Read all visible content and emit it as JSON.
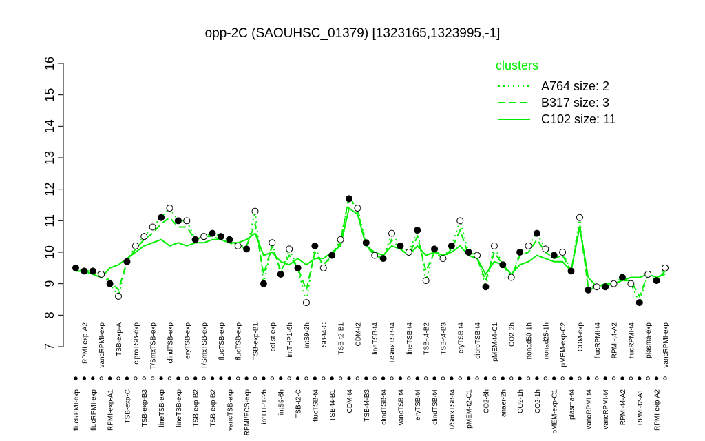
{
  "chart_data": {
    "type": "line",
    "title": "opp-2C (SAOUHSC_01379) [1323165,1323995,-1]",
    "ylim": [
      7,
      16
    ],
    "yticks": [
      7,
      8,
      9,
      10,
      11,
      12,
      13,
      14,
      15,
      16
    ],
    "categories": [
      "flucRPMI-exp",
      "RPMI-exp-A2",
      "flucRPMI-exp",
      "vancRPMI-exp",
      "RPMI-exp-A1",
      "TSB-exp-A",
      "TSB-exp-C",
      "ciproTSB-exp",
      "TSB-exp-B3",
      "T/SmxTSB-exp",
      "lineTSB-exp",
      "clindTSB-exp",
      "lineTSB-exp",
      "eryTSB-exp",
      "TSB-exp-B2",
      "T/SmxTSB-exp",
      "TSB-exp-B2",
      "flucTSB-exp",
      "vancTSB-exp",
      "flucTSB-exp",
      "RPMI/FCS-exp",
      "TSB-exp-B1",
      "intTHP1-2h",
      "colist-exp",
      "intS9-6h",
      "intTHP1-6h",
      "TSB-t2-C",
      "intS9-2h",
      "flucTSB-t4",
      "TSB-t4-C",
      "TSB-t4-B1",
      "TSB-t2-B1",
      "CDM-t4",
      "CDM-t2",
      "TSB-t4-B3",
      "lineTSB-t4",
      "clindTSB-t4",
      "T/SmxTSB-t4",
      "vancTSB-t4",
      "lineTSB-t4",
      "eryTSB-t4",
      "TSB-t4-B2",
      "clindTSB-t4",
      "TSB-t4-B3",
      "T/SmxTSB-t4",
      "eryTSB-t4",
      "pMEM-t2-C1",
      "ciproTSB-t4",
      "CO2-6h",
      "pMEM-t4-C1",
      "anaer-2h",
      "CO2-2h",
      "CO2-1h",
      "nonad50-1h",
      "CO2-1h",
      "nonad25-1h",
      "pMEM-exp-C1",
      "pMEM-exp-C2",
      "plasma-t4",
      "CDM-exp",
      "vancRPMI-t4",
      "flucRPMI-t4",
      "vancRPMI-t4",
      "RPMI-t4-A2",
      "RPMI-t4-A2",
      "flucRPMI-t4",
      "RPMI-t2-A1",
      "plasma-exp",
      "RPMI-exp-A2",
      "vancRPMI-exp"
    ],
    "values": [
      9.5,
      9.4,
      9.4,
      9.3,
      9.0,
      8.6,
      9.7,
      10.2,
      10.5,
      10.8,
      11.1,
      11.4,
      11.0,
      11.0,
      10.4,
      10.5,
      10.6,
      10.5,
      10.4,
      10.2,
      10.1,
      11.3,
      9.0,
      10.3,
      9.3,
      10.1,
      9.5,
      8.4,
      10.2,
      9.5,
      9.9,
      10.4,
      11.7,
      11.4,
      10.3,
      9.9,
      9.8,
      10.6,
      10.2,
      10.0,
      10.7,
      9.1,
      10.1,
      9.8,
      10.2,
      11.0,
      10.0,
      9.9,
      8.9,
      10.2,
      9.6,
      9.2,
      10.0,
      10.2,
      10.6,
      10.1,
      9.9,
      10.0,
      9.4,
      11.1,
      8.8,
      8.9,
      8.9,
      9.0,
      9.2,
      9.0,
      8.4,
      9.3,
      9.1,
      9.5
    ],
    "filled": [
      true,
      true,
      true,
      false,
      true,
      false,
      true,
      false,
      false,
      false,
      true,
      false,
      true,
      false,
      true,
      false,
      true,
      true,
      true,
      false,
      true,
      false,
      true,
      false,
      true,
      false,
      true,
      false,
      true,
      false,
      true,
      false,
      true,
      false,
      true,
      false,
      true,
      false,
      true,
      false,
      true,
      false,
      true,
      false,
      true,
      false,
      true,
      false,
      true,
      false,
      true,
      false,
      true,
      false,
      true,
      false,
      true,
      false,
      true,
      false,
      true,
      false,
      true,
      false,
      true,
      false,
      true,
      false,
      true,
      false
    ],
    "legend_title": "clusters",
    "series": [
      {
        "name": "A764 size: 2",
        "color": "#00ee00",
        "dash": "2,5",
        "values": [
          9.5,
          9.4,
          9.4,
          9.3,
          9.0,
          8.6,
          9.7,
          10.2,
          10.5,
          10.8,
          11.1,
          11.4,
          11.0,
          11.0,
          10.4,
          10.5,
          10.6,
          10.5,
          10.4,
          10.2,
          10.1,
          11.3,
          9.0,
          10.3,
          9.3,
          10.1,
          9.5,
          8.4,
          10.2,
          9.5,
          9.9,
          10.4,
          11.7,
          11.4,
          10.3,
          9.9,
          9.8,
          10.6,
          10.2,
          10.0,
          10.7,
          9.1,
          10.1,
          9.8,
          10.2,
          11.0,
          10.0,
          9.9,
          8.9,
          10.2,
          9.6,
          9.2,
          10.0,
          10.2,
          10.6,
          10.1,
          9.9,
          10.0,
          9.4,
          11.1,
          8.8,
          8.9,
          8.9,
          9.0,
          9.2,
          9.0,
          8.4,
          9.3,
          9.1,
          9.5
        ]
      },
      {
        "name": "B317 size: 3",
        "color": "#00ee00",
        "dash": "10,6",
        "values": [
          9.4,
          9.4,
          9.4,
          9.3,
          9.1,
          8.8,
          9.7,
          10.1,
          10.4,
          10.6,
          10.9,
          11.1,
          10.8,
          10.8,
          10.4,
          10.5,
          10.5,
          10.4,
          10.3,
          10.2,
          10.2,
          10.9,
          9.3,
          10.2,
          9.4,
          9.9,
          9.5,
          8.8,
          10.0,
          9.6,
          9.9,
          10.3,
          11.8,
          11.3,
          10.2,
          9.9,
          9.8,
          10.4,
          10.1,
          9.9,
          10.5,
          9.4,
          10.0,
          9.8,
          10.1,
          10.7,
          9.9,
          9.8,
          9.1,
          10.0,
          9.6,
          9.2,
          9.9,
          10.0,
          10.4,
          10.0,
          9.8,
          9.9,
          9.4,
          10.9,
          8.9,
          8.9,
          8.9,
          9.0,
          9.1,
          9.1,
          8.6,
          9.3,
          9.1,
          9.4
        ]
      },
      {
        "name": "C102 size: 11",
        "color": "#00ee00",
        "dash": "none",
        "values": [
          9.4,
          9.4,
          9.3,
          9.2,
          9.5,
          9.6,
          9.8,
          10.0,
          10.2,
          10.3,
          10.4,
          10.2,
          10.3,
          10.2,
          10.3,
          10.3,
          10.4,
          10.4,
          10.3,
          10.3,
          10.4,
          10.6,
          9.9,
          10.0,
          9.7,
          9.6,
          9.8,
          9.6,
          9.8,
          9.8,
          10.0,
          10.2,
          11.4,
          11.2,
          10.2,
          10.0,
          9.9,
          10.2,
          10.1,
          9.9,
          10.2,
          9.9,
          10.0,
          9.9,
          10.0,
          10.2,
          9.9,
          9.8,
          9.3,
          9.7,
          9.6,
          9.3,
          9.6,
          9.7,
          9.9,
          9.8,
          9.7,
          9.7,
          9.4,
          10.8,
          9.2,
          8.9,
          9.0,
          9.0,
          9.1,
          9.2,
          9.2,
          9.3,
          9.2,
          9.3
        ]
      }
    ]
  }
}
